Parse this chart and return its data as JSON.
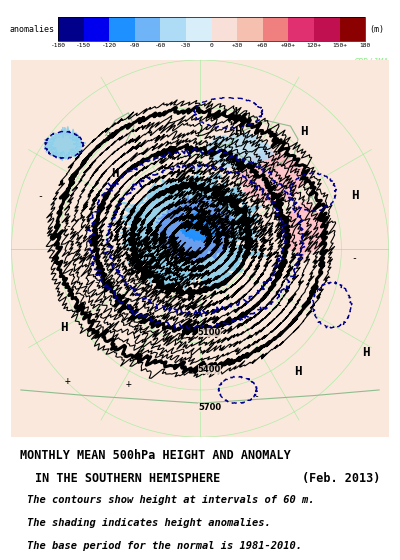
{
  "title_line1": "MONTHLY MEAN 500hPa HEIGHT AND ANOMALY",
  "title_line2": "IN THE SOUTHERN HEMISPHERE",
  "title_date": "(Feb. 2013)",
  "note1": "The contours show height at intervals of 60 m.",
  "note2": "The shading indicates height anomalies.",
  "note3": "The base period for the normal is 1981-2010.",
  "colorbar_label": "anomalies",
  "colorbar_unit": "(m)",
  "colorbar_levels": [
    -180,
    -150,
    -120,
    -90,
    -60,
    -30,
    0,
    30,
    60,
    90,
    120,
    150,
    180
  ],
  "cmap_colors": [
    "#00008B",
    "#0000EE",
    "#1E90FF",
    "#6EB4F7",
    "#AEDCF7",
    "#D8EEF8",
    "#F8E0D8",
    "#F5C0B0",
    "#F08080",
    "#E03070",
    "#C01050",
    "#8B0000"
  ],
  "map_bg_color": "#FAE8DC",
  "map_border_color": "#8FBC8F",
  "grid_color": "#90EE90",
  "contour_color": "#000000",
  "anomaly_dashed_color": "#00008B",
  "cpd_jma_color": "#90EE90",
  "fig_width": 4.0,
  "fig_height": 5.6,
  "dpi": 100
}
